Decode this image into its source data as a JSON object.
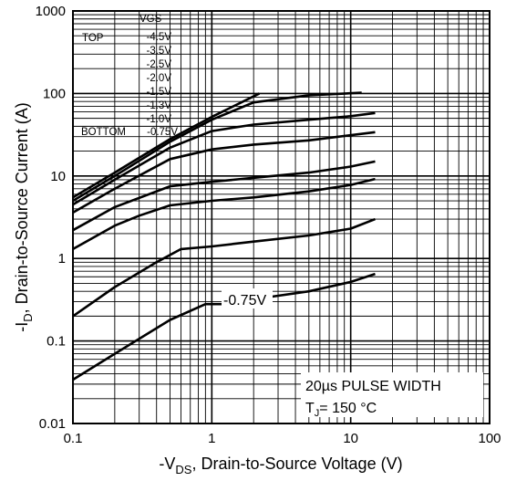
{
  "chart_data": {
    "type": "line",
    "xscale": "log",
    "yscale": "log",
    "xlim": [
      0.1,
      100
    ],
    "ylim": [
      0.01,
      1000
    ],
    "xticks": [
      "0.1",
      "1",
      "10",
      "100"
    ],
    "yticks": [
      "1000",
      "100",
      "10",
      "1",
      "0.1",
      "0.01"
    ],
    "xlabel_parts": [
      "-V",
      "DS",
      ", Drain-to-Source Voltage (V)"
    ],
    "ylabel_parts": [
      "-I",
      "D",
      ",  Drain-to-Source Current (A)"
    ],
    "legend": {
      "header": "VGS",
      "top_label": "TOP",
      "bottom_label": "BOTTOM",
      "entries": [
        "-4.5V",
        "-3.5V",
        "-2.5V",
        "-2.0V",
        "-1.5V",
        "-1.3V",
        "-1.0V",
        "-0.75V"
      ]
    },
    "annotation": "-0.75V",
    "note_line1": "20µs PULSE WIDTH",
    "note_line2_parts": [
      "T",
      "J",
      "= 150 °C"
    ],
    "grid": true,
    "series": [
      {
        "name": "-4.5V",
        "x": [
          0.1,
          0.2,
          0.5,
          1.0,
          2.2
        ],
        "y": [
          5.5,
          11,
          28,
          52,
          100
        ]
      },
      {
        "name": "-3.5V",
        "x": [
          0.1,
          0.2,
          0.5,
          1.0,
          2.0,
          5.0,
          12.0
        ],
        "y": [
          5.0,
          10,
          26,
          48,
          78,
          95,
          102
        ]
      },
      {
        "name": "-2.5V",
        "x": [
          0.1,
          0.2,
          0.5,
          1.0,
          2.0,
          5.0,
          10.0,
          15.0
        ],
        "y": [
          4.5,
          9,
          22,
          35,
          42,
          48,
          53,
          58
        ]
      },
      {
        "name": "-2.0V",
        "x": [
          0.1,
          0.2,
          0.5,
          1.0,
          2.0,
          5.0,
          15.0
        ],
        "y": [
          3.6,
          7,
          16,
          21,
          24,
          27,
          34
        ]
      },
      {
        "name": "-1.5V",
        "x": [
          0.1,
          0.2,
          0.5,
          1.0,
          2.0,
          5.0,
          10.0,
          15.0
        ],
        "y": [
          2.2,
          4.2,
          7.5,
          8.5,
          9.5,
          11,
          13,
          15
        ]
      },
      {
        "name": "-1.3V",
        "x": [
          0.1,
          0.2,
          0.3,
          0.5,
          1.0,
          2.0,
          5.0,
          10.0,
          15.0
        ],
        "y": [
          1.3,
          2.5,
          3.3,
          4.4,
          5.0,
          5.5,
          6.5,
          7.8,
          9.2
        ]
      },
      {
        "name": "-1.0V",
        "x": [
          0.1,
          0.2,
          0.4,
          0.6,
          1.0,
          2.0,
          5.0,
          10.0,
          15.0
        ],
        "y": [
          0.2,
          0.45,
          0.9,
          1.3,
          1.4,
          1.6,
          1.9,
          2.3,
          3.0
        ]
      },
      {
        "name": "-0.75V",
        "x": [
          0.1,
          0.2,
          0.5,
          0.9,
          1.2,
          2.0,
          5.0,
          10.0,
          15.0
        ],
        "y": [
          0.034,
          0.07,
          0.18,
          0.28,
          0.28,
          0.32,
          0.4,
          0.52,
          0.65
        ]
      }
    ]
  }
}
